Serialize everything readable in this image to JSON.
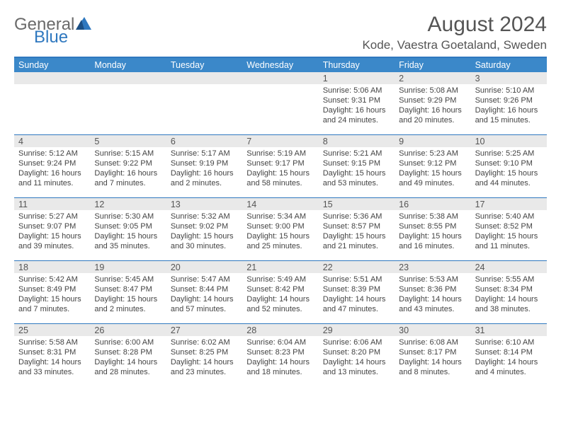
{
  "logo": {
    "general": "General",
    "blue": "Blue"
  },
  "title": "August 2024",
  "location": "Kode, Vaestra Goetaland, Sweden",
  "colors": {
    "header_bg": "#3b88c9",
    "border": "#2f78bf",
    "daynum_bg": "#e9e9e9",
    "text": "#555"
  },
  "daynames": [
    "Sunday",
    "Monday",
    "Tuesday",
    "Wednesday",
    "Thursday",
    "Friday",
    "Saturday"
  ],
  "weeks": [
    [
      {
        "n": "",
        "sr": "",
        "ss": "",
        "dl": ""
      },
      {
        "n": "",
        "sr": "",
        "ss": "",
        "dl": ""
      },
      {
        "n": "",
        "sr": "",
        "ss": "",
        "dl": ""
      },
      {
        "n": "",
        "sr": "",
        "ss": "",
        "dl": ""
      },
      {
        "n": "1",
        "sr": "Sunrise: 5:06 AM",
        "ss": "Sunset: 9:31 PM",
        "dl": "Daylight: 16 hours and 24 minutes."
      },
      {
        "n": "2",
        "sr": "Sunrise: 5:08 AM",
        "ss": "Sunset: 9:29 PM",
        "dl": "Daylight: 16 hours and 20 minutes."
      },
      {
        "n": "3",
        "sr": "Sunrise: 5:10 AM",
        "ss": "Sunset: 9:26 PM",
        "dl": "Daylight: 16 hours and 15 minutes."
      }
    ],
    [
      {
        "n": "4",
        "sr": "Sunrise: 5:12 AM",
        "ss": "Sunset: 9:24 PM",
        "dl": "Daylight: 16 hours and 11 minutes."
      },
      {
        "n": "5",
        "sr": "Sunrise: 5:15 AM",
        "ss": "Sunset: 9:22 PM",
        "dl": "Daylight: 16 hours and 7 minutes."
      },
      {
        "n": "6",
        "sr": "Sunrise: 5:17 AM",
        "ss": "Sunset: 9:19 PM",
        "dl": "Daylight: 16 hours and 2 minutes."
      },
      {
        "n": "7",
        "sr": "Sunrise: 5:19 AM",
        "ss": "Sunset: 9:17 PM",
        "dl": "Daylight: 15 hours and 58 minutes."
      },
      {
        "n": "8",
        "sr": "Sunrise: 5:21 AM",
        "ss": "Sunset: 9:15 PM",
        "dl": "Daylight: 15 hours and 53 minutes."
      },
      {
        "n": "9",
        "sr": "Sunrise: 5:23 AM",
        "ss": "Sunset: 9:12 PM",
        "dl": "Daylight: 15 hours and 49 minutes."
      },
      {
        "n": "10",
        "sr": "Sunrise: 5:25 AM",
        "ss": "Sunset: 9:10 PM",
        "dl": "Daylight: 15 hours and 44 minutes."
      }
    ],
    [
      {
        "n": "11",
        "sr": "Sunrise: 5:27 AM",
        "ss": "Sunset: 9:07 PM",
        "dl": "Daylight: 15 hours and 39 minutes."
      },
      {
        "n": "12",
        "sr": "Sunrise: 5:30 AM",
        "ss": "Sunset: 9:05 PM",
        "dl": "Daylight: 15 hours and 35 minutes."
      },
      {
        "n": "13",
        "sr": "Sunrise: 5:32 AM",
        "ss": "Sunset: 9:02 PM",
        "dl": "Daylight: 15 hours and 30 minutes."
      },
      {
        "n": "14",
        "sr": "Sunrise: 5:34 AM",
        "ss": "Sunset: 9:00 PM",
        "dl": "Daylight: 15 hours and 25 minutes."
      },
      {
        "n": "15",
        "sr": "Sunrise: 5:36 AM",
        "ss": "Sunset: 8:57 PM",
        "dl": "Daylight: 15 hours and 21 minutes."
      },
      {
        "n": "16",
        "sr": "Sunrise: 5:38 AM",
        "ss": "Sunset: 8:55 PM",
        "dl": "Daylight: 15 hours and 16 minutes."
      },
      {
        "n": "17",
        "sr": "Sunrise: 5:40 AM",
        "ss": "Sunset: 8:52 PM",
        "dl": "Daylight: 15 hours and 11 minutes."
      }
    ],
    [
      {
        "n": "18",
        "sr": "Sunrise: 5:42 AM",
        "ss": "Sunset: 8:49 PM",
        "dl": "Daylight: 15 hours and 7 minutes."
      },
      {
        "n": "19",
        "sr": "Sunrise: 5:45 AM",
        "ss": "Sunset: 8:47 PM",
        "dl": "Daylight: 15 hours and 2 minutes."
      },
      {
        "n": "20",
        "sr": "Sunrise: 5:47 AM",
        "ss": "Sunset: 8:44 PM",
        "dl": "Daylight: 14 hours and 57 minutes."
      },
      {
        "n": "21",
        "sr": "Sunrise: 5:49 AM",
        "ss": "Sunset: 8:42 PM",
        "dl": "Daylight: 14 hours and 52 minutes."
      },
      {
        "n": "22",
        "sr": "Sunrise: 5:51 AM",
        "ss": "Sunset: 8:39 PM",
        "dl": "Daylight: 14 hours and 47 minutes."
      },
      {
        "n": "23",
        "sr": "Sunrise: 5:53 AM",
        "ss": "Sunset: 8:36 PM",
        "dl": "Daylight: 14 hours and 43 minutes."
      },
      {
        "n": "24",
        "sr": "Sunrise: 5:55 AM",
        "ss": "Sunset: 8:34 PM",
        "dl": "Daylight: 14 hours and 38 minutes."
      }
    ],
    [
      {
        "n": "25",
        "sr": "Sunrise: 5:58 AM",
        "ss": "Sunset: 8:31 PM",
        "dl": "Daylight: 14 hours and 33 minutes."
      },
      {
        "n": "26",
        "sr": "Sunrise: 6:00 AM",
        "ss": "Sunset: 8:28 PM",
        "dl": "Daylight: 14 hours and 28 minutes."
      },
      {
        "n": "27",
        "sr": "Sunrise: 6:02 AM",
        "ss": "Sunset: 8:25 PM",
        "dl": "Daylight: 14 hours and 23 minutes."
      },
      {
        "n": "28",
        "sr": "Sunrise: 6:04 AM",
        "ss": "Sunset: 8:23 PM",
        "dl": "Daylight: 14 hours and 18 minutes."
      },
      {
        "n": "29",
        "sr": "Sunrise: 6:06 AM",
        "ss": "Sunset: 8:20 PM",
        "dl": "Daylight: 14 hours and 13 minutes."
      },
      {
        "n": "30",
        "sr": "Sunrise: 6:08 AM",
        "ss": "Sunset: 8:17 PM",
        "dl": "Daylight: 14 hours and 8 minutes."
      },
      {
        "n": "31",
        "sr": "Sunrise: 6:10 AM",
        "ss": "Sunset: 8:14 PM",
        "dl": "Daylight: 14 hours and 4 minutes."
      }
    ]
  ]
}
